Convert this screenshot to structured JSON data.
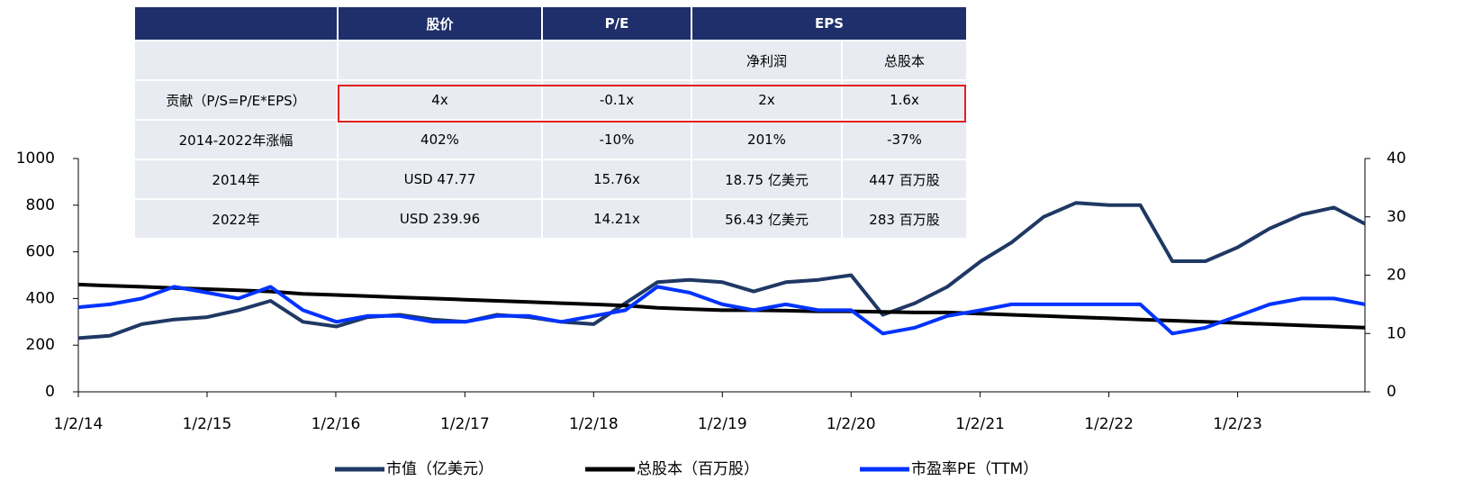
{
  "chart_data": {
    "type": "line",
    "x": [
      "1/2/14",
      "4/1/14",
      "7/1/14",
      "10/1/14",
      "1/2/15",
      "4/1/15",
      "7/1/15",
      "10/1/15",
      "1/4/16",
      "4/1/16",
      "7/1/16",
      "10/3/16",
      "1/3/17",
      "4/3/17",
      "7/3/17",
      "10/2/17",
      "1/2/18",
      "4/2/18",
      "7/2/18",
      "10/1/18",
      "1/2/19",
      "4/1/19",
      "7/1/19",
      "10/1/19",
      "1/2/20",
      "4/1/20",
      "7/1/20",
      "10/1/20",
      "1/4/21",
      "4/1/21",
      "7/1/21",
      "10/1/21",
      "1/3/22",
      "4/1/22",
      "7/1/22",
      "10/3/22",
      "1/3/23",
      "4/3/23",
      "7/3/23",
      "10/2/23",
      "12/29/23"
    ],
    "series": [
      {
        "name": "市值（亿美元）",
        "color": "#1f3864",
        "axis": "y",
        "values": [
          230,
          240,
          290,
          310,
          320,
          350,
          390,
          300,
          280,
          320,
          330,
          310,
          300,
          330,
          320,
          300,
          290,
          380,
          470,
          480,
          470,
          430,
          470,
          480,
          500,
          330,
          380,
          450,
          560,
          640,
          750,
          810,
          800,
          800,
          560,
          560,
          620,
          700,
          760,
          790,
          720
        ]
      },
      {
        "name": "总股本（百万股）",
        "color": "#000000",
        "axis": "y",
        "values": [
          460,
          455,
          450,
          445,
          440,
          435,
          430,
          420,
          415,
          410,
          405,
          400,
          395,
          390,
          385,
          380,
          375,
          370,
          360,
          355,
          350,
          350,
          348,
          345,
          345,
          343,
          340,
          340,
          335,
          330,
          325,
          320,
          315,
          310,
          305,
          300,
          295,
          290,
          285,
          280,
          275
        ]
      },
      {
        "name": "市盈率PE（TTM）",
        "color": "#0033ff",
        "axis": "y2",
        "values": [
          14.5,
          15,
          16,
          18,
          17,
          16,
          18,
          14,
          12,
          13,
          13,
          12,
          12,
          13,
          13,
          12,
          13,
          14,
          18,
          17,
          15,
          14,
          15,
          14,
          14,
          10,
          11,
          13,
          14,
          15,
          15,
          15,
          15,
          15,
          10,
          11,
          13,
          15,
          16,
          16,
          15
        ]
      }
    ],
    "xlim": [
      "1/2/14",
      "12/29/23"
    ],
    "xticks": [
      "1/2/14",
      "1/2/15",
      "1/2/16",
      "1/2/17",
      "1/2/18",
      "1/2/19",
      "1/2/20",
      "1/2/21",
      "1/2/22",
      "1/2/23"
    ],
    "ylim": [
      0,
      1000
    ],
    "yticks": [
      0,
      200,
      400,
      600,
      800,
      1000
    ],
    "y2lim": [
      0,
      40
    ],
    "y2ticks": [
      0,
      10,
      20,
      30,
      40
    ]
  },
  "table": {
    "header": [
      "股价",
      "P/E",
      "EPS"
    ],
    "subheader": [
      "净利润",
      "总股本"
    ],
    "rows": [
      {
        "label": "贡献（P/S=P/E*EPS）",
        "cells": [
          "4x",
          "-0.1x",
          "2x",
          "1.6x"
        ]
      },
      {
        "label": "2014-2022年涨幅",
        "cells": [
          "402%",
          "-10%",
          "201%",
          "-37%"
        ]
      },
      {
        "label": "2014年",
        "cells": [
          "USD 47.77",
          "15.76x",
          "18.75 亿美元",
          "447 百万股"
        ]
      },
      {
        "label": "2022年",
        "cells": [
          "USD 239.96",
          "14.21x",
          "56.43 亿美元",
          "283 百万股"
        ]
      }
    ]
  }
}
